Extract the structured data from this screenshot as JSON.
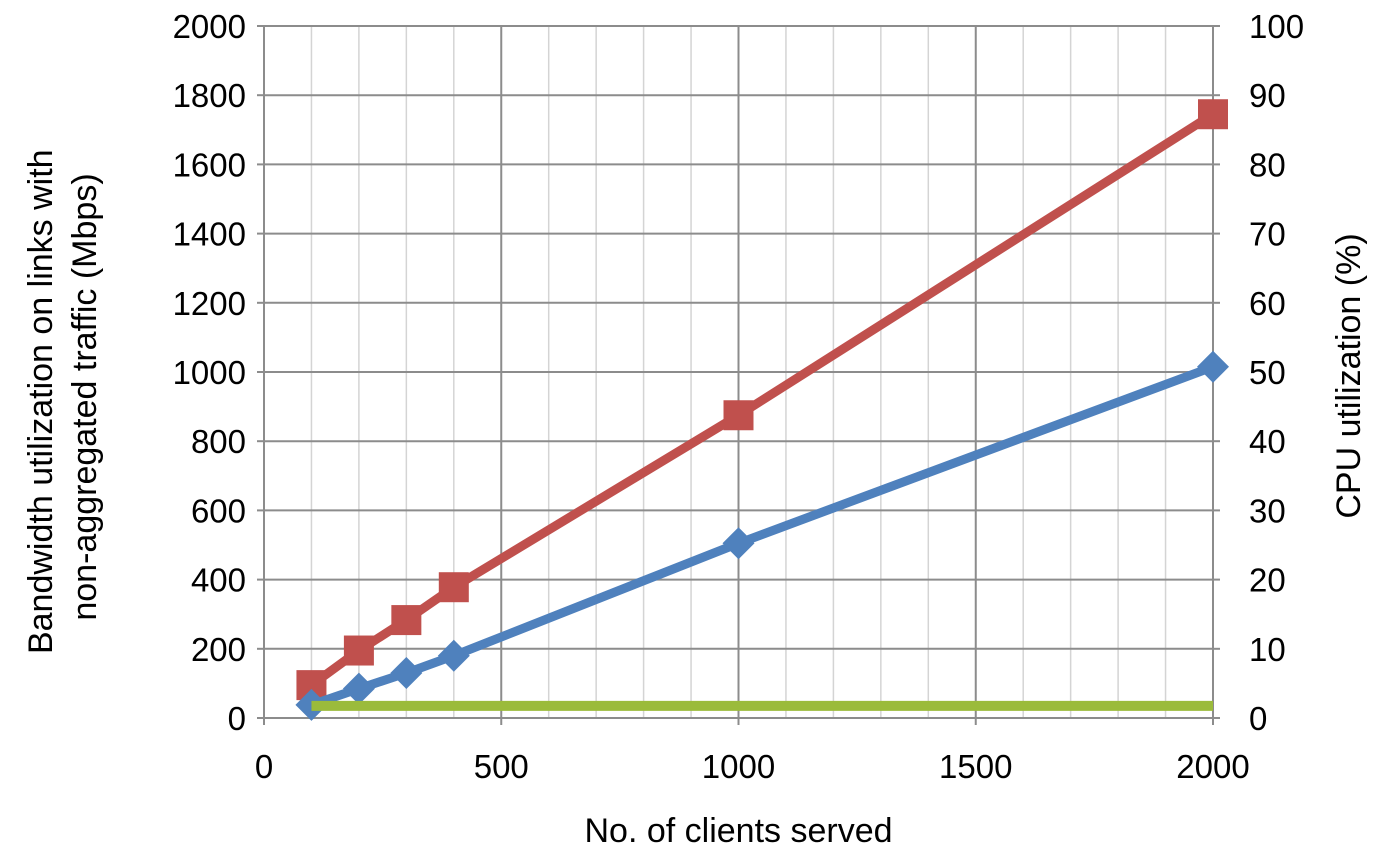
{
  "chart_data": {
    "type": "line",
    "xlabel": "No. of clients served",
    "ylabel": "Bandwidth utilization on links with non-aggregated traffic (Mbps)",
    "ylabel_lines": [
      "Bandwidth utilization on links with",
      "non-aggregated traffic (Mbps)"
    ],
    "y2label": "CPU utilization (%)",
    "xlim": [
      0,
      2000
    ],
    "ylim": [
      0,
      2000
    ],
    "y2lim": [
      0,
      100
    ],
    "x_ticks": [
      "0",
      "500",
      "1000",
      "1500",
      "2000"
    ],
    "y_ticks": [
      "0",
      "200",
      "400",
      "600",
      "800",
      "1000",
      "1200",
      "1400",
      "1600",
      "1800",
      "2000"
    ],
    "y2_ticks": [
      "0",
      "10",
      "20",
      "30",
      "40",
      "50",
      "60",
      "70",
      "80",
      "90",
      "100"
    ],
    "grid": true,
    "legend": "none",
    "series": [
      {
        "color": "#c0504d",
        "marker": "square",
        "axis": "left",
        "x": [
          100,
          200,
          300,
          400,
          1000,
          2000
        ],
        "y": [
          95,
          195,
          283,
          378,
          875,
          1745
        ]
      },
      {
        "color": "#4f81bd",
        "marker": "diamond",
        "axis": "left",
        "x": [
          100,
          200,
          300,
          400,
          1000,
          2000
        ],
        "y": [
          38,
          85,
          130,
          180,
          505,
          1015
        ]
      },
      {
        "color": "#9bbb3b",
        "marker": "none",
        "axis": "right",
        "x": [
          100,
          2000
        ],
        "y": [
          1.75,
          1.75
        ]
      }
    ]
  }
}
